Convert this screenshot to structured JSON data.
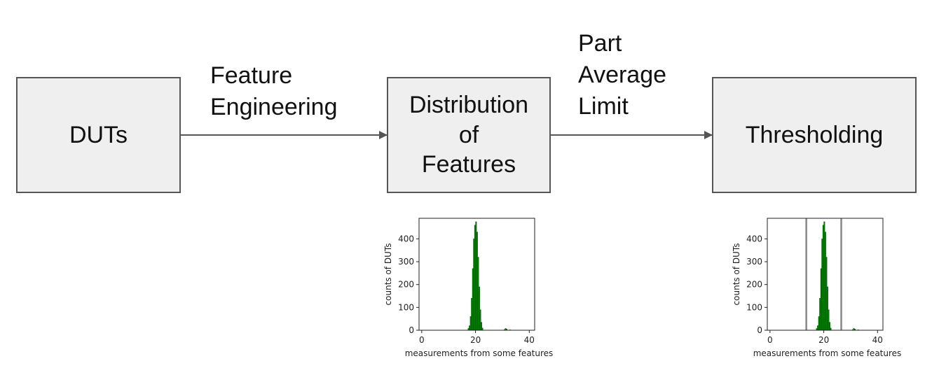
{
  "boxes": {
    "duts": "DUTs",
    "distribution": [
      "Distribution",
      "of",
      "Features"
    ],
    "thresholding": "Thresholding"
  },
  "edges": {
    "feature_engineering": [
      "Feature",
      "Engineering"
    ],
    "part_average_limit": [
      "Part",
      "Average",
      "Limit"
    ]
  },
  "colors": {
    "bars": "#008000",
    "box_fill": "#efefef",
    "box_border": "#555555",
    "arrow": "#555555",
    "threshold_lines": "#888888"
  },
  "chart_data": [
    {
      "type": "bar",
      "name_hint": "distribution histogram",
      "xlabel": "measurements from some features",
      "ylabel": "counts of DUTs",
      "xlim": [
        -1,
        42
      ],
      "ylim": [
        0,
        490
      ],
      "xticks": [
        0,
        20,
        40
      ],
      "yticks": [
        0,
        100,
        200,
        300,
        400
      ],
      "bin_width": 0.4,
      "x": [
        17.2,
        17.6,
        18.0,
        18.4,
        18.8,
        19.2,
        19.6,
        20.0,
        20.4,
        20.8,
        21.2,
        21.6,
        22.0,
        22.4,
        30.6,
        31.0,
        31.4,
        32.6
      ],
      "values": [
        8,
        20,
        60,
        140,
        270,
        400,
        460,
        475,
        430,
        320,
        190,
        90,
        35,
        10,
        3,
        8,
        5,
        2
      ]
    },
    {
      "type": "bar",
      "name_hint": "thresholding histogram",
      "xlabel": "measurements from some features",
      "ylabel": "counts of DUTs",
      "xlim": [
        -1,
        42
      ],
      "ylim": [
        0,
        490
      ],
      "xticks": [
        0,
        20,
        40
      ],
      "yticks": [
        0,
        100,
        200,
        300,
        400
      ],
      "bin_width": 0.4,
      "x": [
        17.2,
        17.6,
        18.0,
        18.4,
        18.8,
        19.2,
        19.6,
        20.0,
        20.4,
        20.8,
        21.2,
        21.6,
        22.0,
        22.4,
        30.6,
        31.0,
        31.4,
        32.6
      ],
      "values": [
        8,
        20,
        60,
        140,
        270,
        400,
        460,
        475,
        430,
        320,
        190,
        90,
        35,
        10,
        3,
        8,
        5,
        2
      ],
      "threshold_lines": [
        13.5,
        26.5
      ]
    }
  ]
}
